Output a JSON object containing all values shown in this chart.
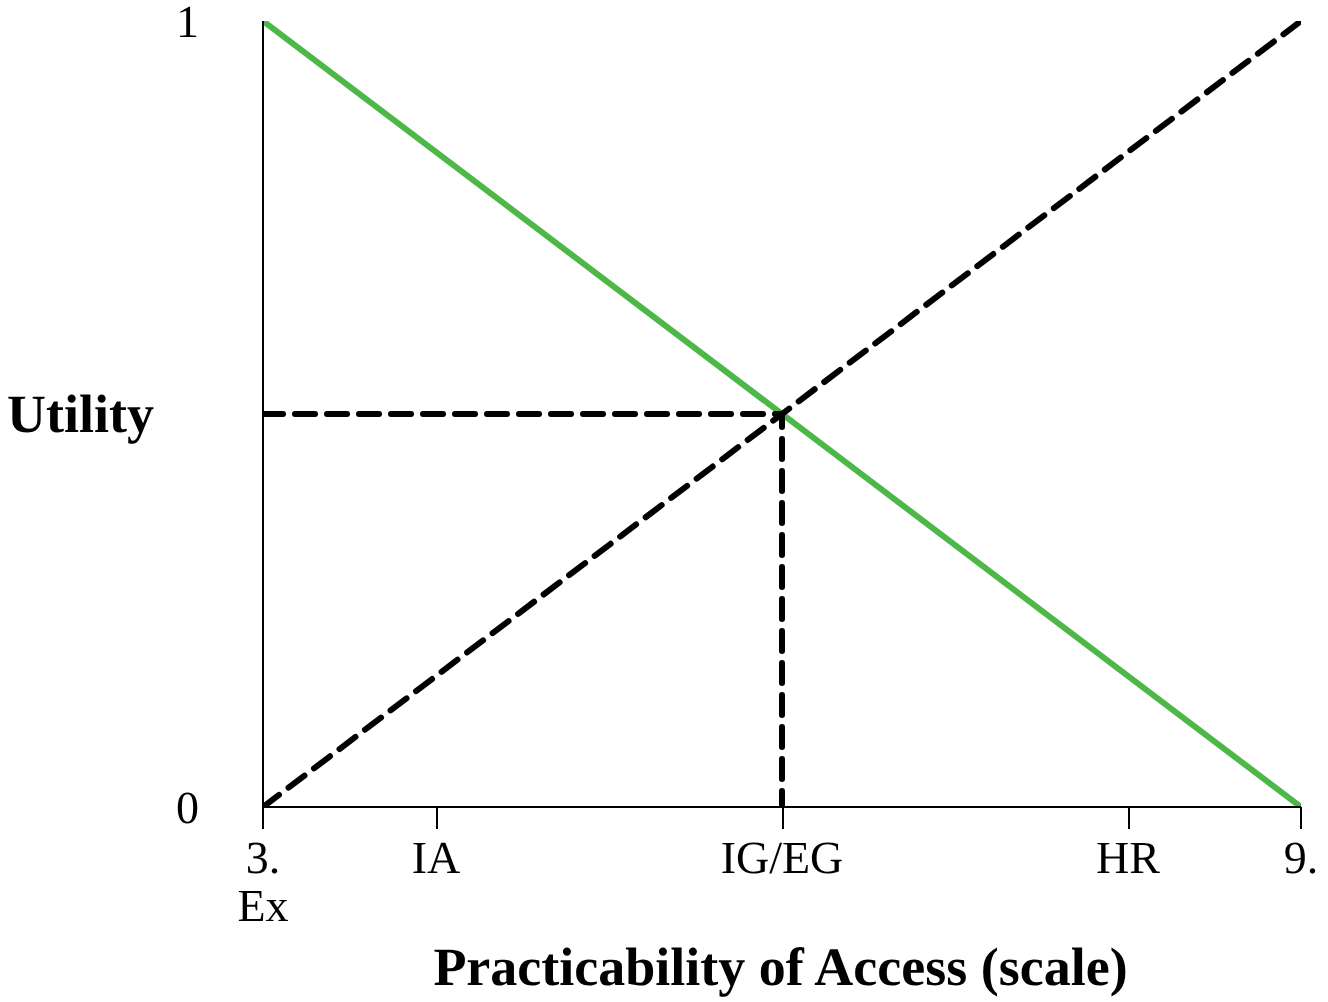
{
  "chart_data": {
    "type": "line",
    "xlabel": "Practicability of Access (scale)",
    "ylabel": "Utility",
    "xlim": [
      3,
      9
    ],
    "ylim": [
      0,
      1
    ],
    "xticks": [
      {
        "value": 3,
        "label": "3.\nEx"
      },
      {
        "value": 4,
        "label": "IA"
      },
      {
        "value": 6,
        "label": "IG/EG"
      },
      {
        "value": 8,
        "label": "HR"
      },
      {
        "value": 9,
        "label": "9."
      }
    ],
    "yticks": [
      0,
      1
    ],
    "grid": false,
    "series": [
      {
        "color": "#4db848",
        "x": [
          3,
          9
        ],
        "values": [
          1,
          0
        ],
        "line_style": "solid"
      },
      {
        "color": "#000000",
        "x": [
          3,
          9
        ],
        "values": [
          0,
          1
        ],
        "line_style": "dashed"
      },
      {
        "color": "#000000",
        "x": [
          3,
          6,
          6
        ],
        "values": [
          0.5,
          0.5,
          0
        ],
        "line_style": "dashed"
      }
    ]
  }
}
